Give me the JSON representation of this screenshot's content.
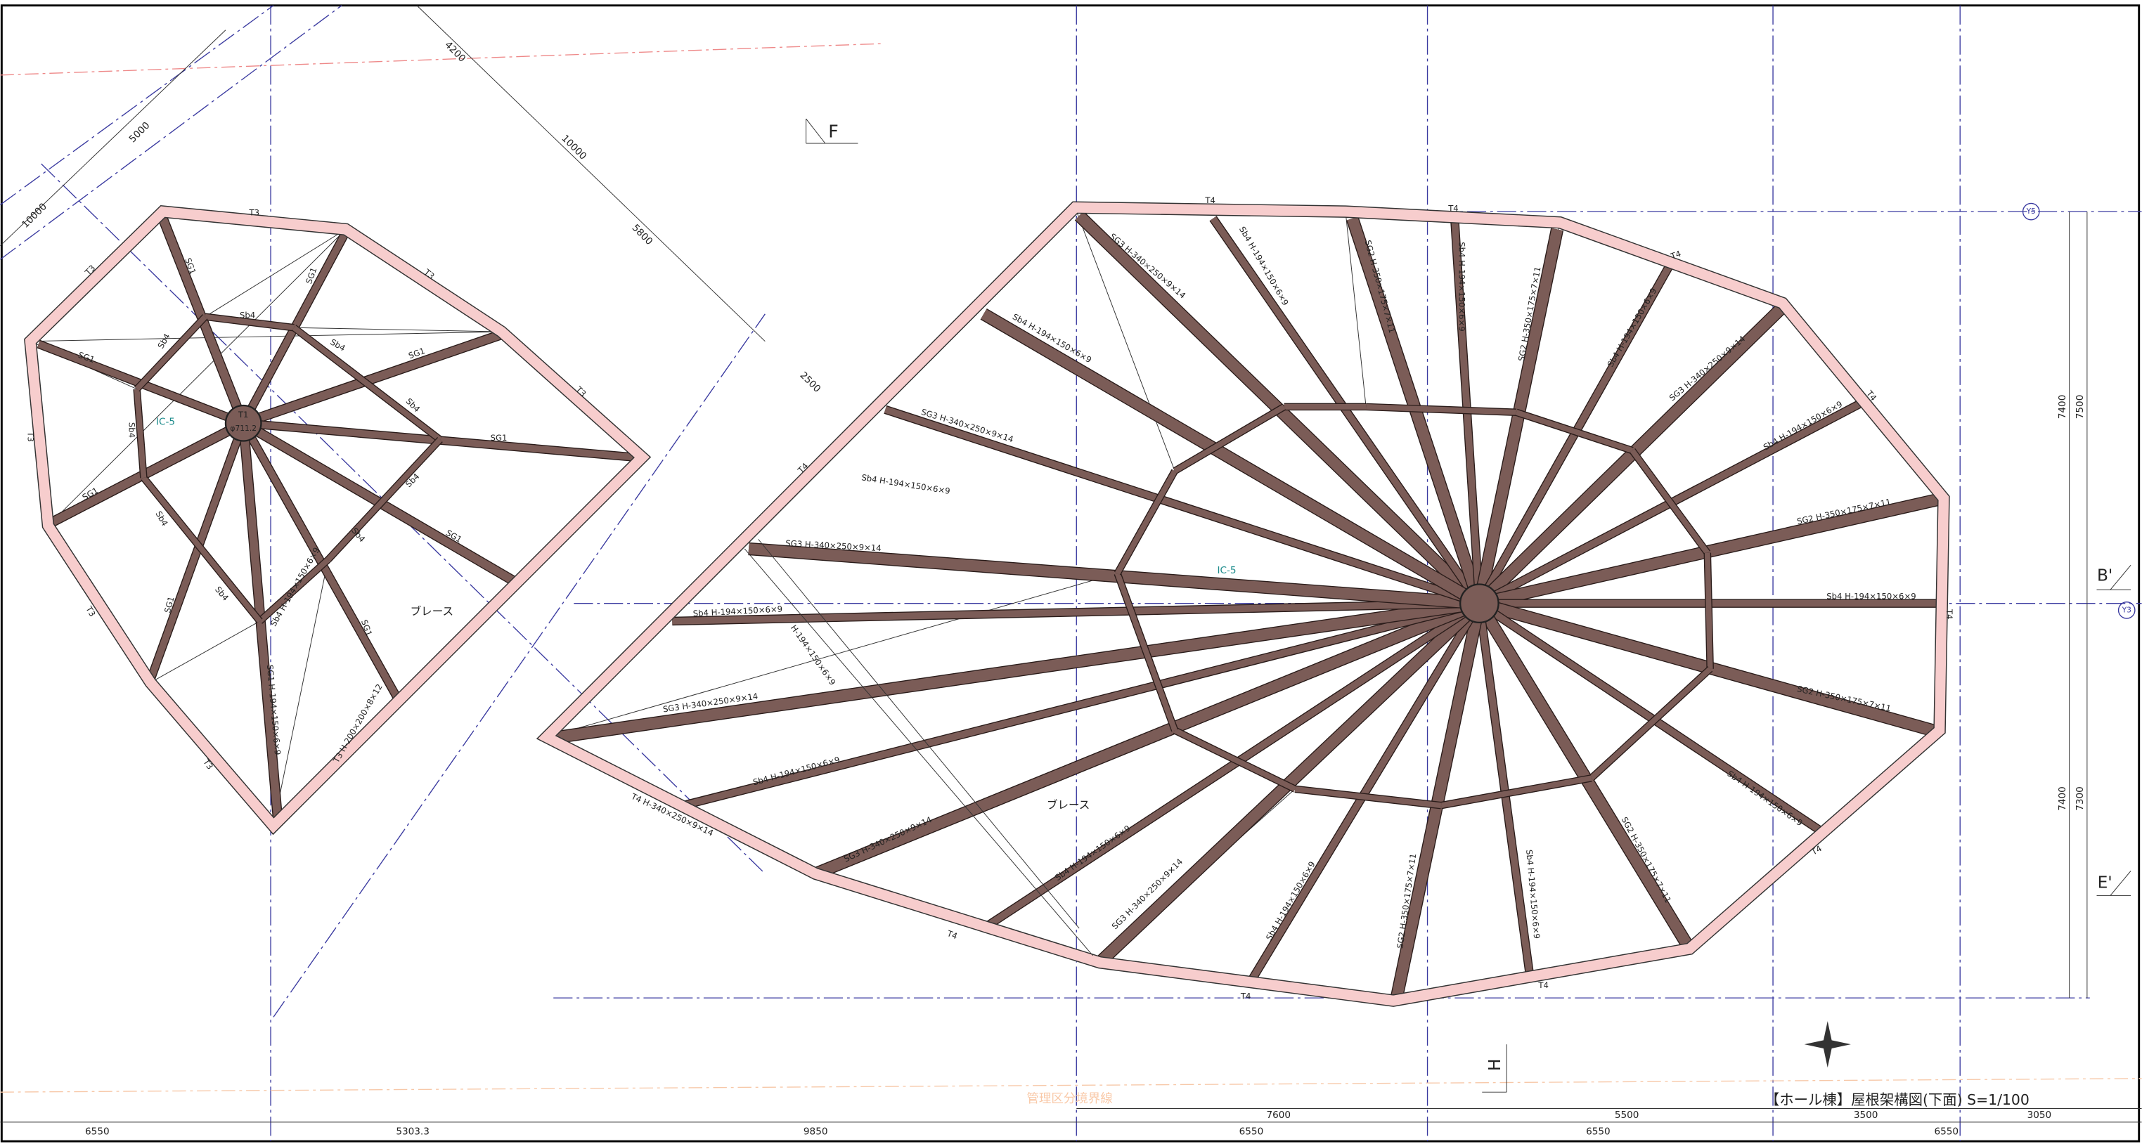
{
  "title": "【ホール棟】屋根架構図(下面) S=1/100",
  "markers": {
    "F": "F",
    "B": "B'",
    "E": "E'",
    "H": "H"
  },
  "grid_labels": [
    "Y5",
    "Y3"
  ],
  "dimensions_bottom": [
    "7600",
    "5500",
    "3500",
    "3050",
    "6550",
    "5303.3",
    "9850",
    "6550",
    "6550",
    "6550"
  ],
  "dimensions_left": [
    "4200",
    "10000",
    "5000",
    "10000",
    "5800",
    "2500"
  ],
  "dimensions_right": [
    "7400",
    "7500",
    "7400",
    "7300"
  ],
  "hub_labels": [
    "T1",
    "φ711.2"
  ],
  "notes": [
    "ブレース",
    "ブレース",
    "IC-5",
    "IC-5",
    "管理区分境界線"
  ],
  "right_labels": [
    "T4",
    "T4",
    "T4",
    "T4",
    "T4",
    "T4",
    "T4",
    "T4",
    "T4",
    "T4",
    "SG3 H-340×250×9×14",
    "Sb4 H-194×150×6×9",
    "SG2 H-350×175×7×11",
    "Sb4 H-194×150×6×9",
    "SG2 H-350×175×7×11",
    "Sb4 H-194×150×6×9",
    "SG3 H-340×250×9×14",
    "Sb4 H-194×150×6×9",
    "SG2 H-350×175×7×11",
    "Sb4 H-194×150×6×9",
    "SG2 H-350×175×7×11",
    "Sb4 H-194×150×6×9",
    "SG2 H-350×175×7×11",
    "Sb4 H-194×150×6×9",
    "SG2 H-350×175×7×11",
    "Sb4 H-194×150×6×9",
    "SG3 H-340×250×9×14",
    "Sb4 H-194×150×6×9",
    "SG3 H-340×250×9×14",
    "Sb4 H-194×150×6×9",
    "SG3 H-340×250×9×14",
    "Sb4 H-194×150×6×9",
    "SG3 H-340×250×9×14",
    "Sb4 H-194×150×6×9",
    "SG3 H-340×250×9×14",
    "Sb4 H-194×150×6×9",
    "T4 H-340×250×9×14",
    "H-194×150×6×9"
  ],
  "left_labels": [
    "T3",
    "T3",
    "T3",
    "T3",
    "T3",
    "T3",
    "T3",
    "SG1",
    "SG1",
    "Sb4",
    "Sb4",
    "Sb4",
    "SG1",
    "SG1",
    "Sb4",
    "SG1",
    "Sb4",
    "Sb4",
    "SG1",
    "Sb4",
    "SG1",
    "Sb4",
    "SG1",
    "Sb4",
    "SG1",
    "Sb4 H-194×150×6×9",
    "SG1 H-194×150×6×9",
    "T3 H-200×200×8×12"
  ]
}
